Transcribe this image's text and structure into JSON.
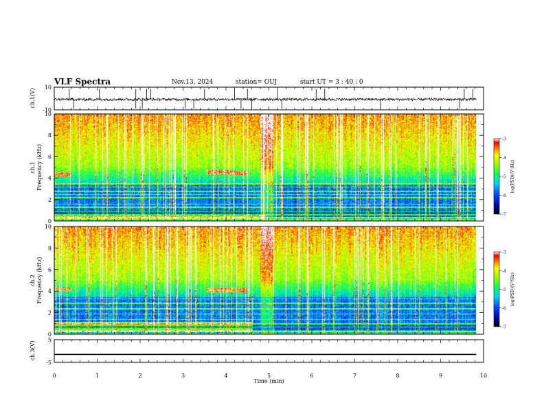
{
  "header": {
    "title": "VLF Spectra",
    "date": "Nov.13, 2024",
    "station": "station= OUJ",
    "start": "start  UT =  3 : 40 : 0"
  },
  "chart_data": [
    {
      "type": "line",
      "panel": "ch1-waveform",
      "ylabel": "ch.1(V)",
      "ylim": [
        -10,
        10
      ],
      "yticks": [
        10,
        -10
      ],
      "xlim": [
        0,
        10
      ],
      "baseline": -0.8,
      "noise_amplitude": 1.2,
      "spikes_up_min": [
        0.35,
        1.05,
        1.9,
        2.15,
        2.25,
        3.5,
        4.2,
        4.5,
        5.2,
        6.1,
        6.3,
        9.55,
        9.75
      ],
      "spikes_down_min": [
        0.45,
        1.9,
        2.05,
        3.05,
        3.25,
        4.35,
        4.6,
        5.3,
        7.6,
        9.45
      ]
    },
    {
      "type": "heatmap",
      "panel": "ch1-spectrogram",
      "ylabel": "ch.1 Frequency (kHz)",
      "ylim": [
        0,
        10
      ],
      "yticks": [
        0,
        2,
        4,
        6,
        8,
        10
      ],
      "xlim": [
        0,
        9.83
      ],
      "colorbar": {
        "label": "log(PSD)(V²/Hz)",
        "range": [
          -7,
          -3
        ],
        "ticks": [
          -3,
          -4,
          -5,
          -6,
          -7
        ]
      },
      "tone_lines_khz": [
        0.2,
        0.35,
        0.6,
        0.9,
        1.3,
        1.6,
        2.2,
        2.5,
        2.8,
        3.2,
        3.5
      ],
      "bursts": [
        {
          "t0": 0.0,
          "t1": 0.4,
          "f_khz": 4.4
        },
        {
          "t0": 3.55,
          "t1": 4.1,
          "f_khz": 4.6
        },
        {
          "t0": 4.1,
          "t1": 4.5,
          "f_khz": 4.5
        },
        {
          "t0": 0.0,
          "t1": 4.9,
          "f_khz": 0.4
        }
      ]
    },
    {
      "type": "heatmap",
      "panel": "ch2-spectrogram",
      "ylabel": "ch.2 Frequency (kHz)",
      "ylim": [
        0,
        10
      ],
      "yticks": [
        0,
        2,
        4,
        6,
        8,
        10
      ],
      "xlim": [
        0,
        9.83
      ],
      "colorbar": {
        "label": "log(PSD)(V²/Hz)",
        "range": [
          -7,
          -3
        ],
        "ticks": [
          -3,
          -4,
          -5,
          -6,
          -7
        ]
      },
      "tone_lines_khz": [
        0.3,
        0.7,
        1.0,
        1.4,
        1.9,
        2.4,
        2.9,
        3.3
      ],
      "bursts": [
        {
          "t0": 0.0,
          "t1": 0.4,
          "f_khz": 4.2
        },
        {
          "t0": 3.55,
          "t1": 4.5,
          "f_khz": 4.1
        },
        {
          "t0": 0.0,
          "t1": 4.6,
          "f_khz": 1.0
        },
        {
          "t0": 0.0,
          "t1": 4.6,
          "f_khz": 0.4
        }
      ]
    },
    {
      "type": "line",
      "panel": "ch3-waveform",
      "ylabel": "ch.3(V)",
      "ylim": [
        -5,
        5
      ],
      "yticks": [
        5,
        -5
      ],
      "xlim": [
        0,
        10
      ],
      "value": -1.5,
      "xlabel": "Time  (min)",
      "xticks": [
        0,
        1,
        2,
        3,
        4,
        5,
        6,
        7,
        8,
        9,
        10
      ]
    }
  ]
}
